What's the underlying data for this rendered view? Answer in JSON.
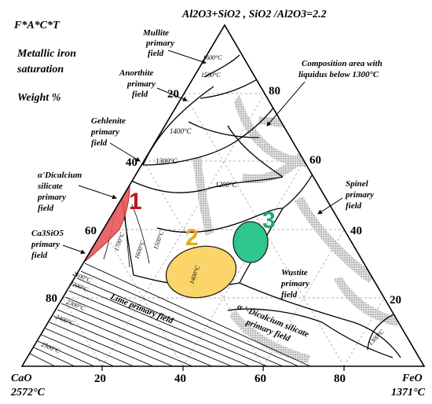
{
  "title_top": "Al2O3+SiO2 , SiO2 /Al2O3=2.2",
  "system": "F*A*C*T",
  "iron": "Metallic iron",
  "saturation": "saturation",
  "weight": "Weight %",
  "corner_left_name": "CaO",
  "corner_left_temp": "2572°C",
  "corner_right_name": "FeO",
  "corner_right_temp": "1371°C",
  "ticks_bottom": [
    "20",
    "40",
    "60",
    "80"
  ],
  "ticks_right": [
    "80",
    "60",
    "40",
    "20"
  ],
  "ticks_left": [
    "20",
    "40",
    "60",
    "80"
  ],
  "fields": {
    "mullite": [
      "Mullite",
      "primary",
      "field"
    ],
    "anorthite": [
      "Anorthite",
      "primary",
      "field"
    ],
    "gehlenite": [
      "Gehlenite",
      "primary",
      "field"
    ],
    "dicalcium_alpha_prime": [
      "α'Dicalcium",
      "silicate",
      "primary",
      "field"
    ],
    "ca3sio5": [
      "Ca3SiO5",
      "primary",
      "field"
    ],
    "spinel": [
      "Spinel",
      "primary",
      "field"
    ],
    "wustite": [
      "Wustite",
      "primary",
      "field"
    ],
    "dicalcium_alpha": [
      "α '-Dicalcium silicate",
      "primary field"
    ],
    "lime": "Lime primary field",
    "composition": [
      "Composition area with",
      "liquidus below 1300°C"
    ]
  },
  "isotherms": [
    "1600°C",
    "1500°C",
    "1400°C",
    "1300°C",
    "1200°C",
    "1700°C",
    "1600°C",
    "1500°C",
    "1400°C",
    "2100°C",
    "2200°C",
    "2300°C",
    "2400°C",
    "2500°C",
    "1300°C"
  ],
  "regions": [
    {
      "label": "1",
      "color": "#e8585a",
      "text_color": "#c0141c"
    },
    {
      "label": "2",
      "color": "#fbd56a",
      "text_color": "#e8a91c"
    },
    {
      "label": "3",
      "color": "#2fc58f",
      "text_color": "#1aa86e"
    }
  ]
}
